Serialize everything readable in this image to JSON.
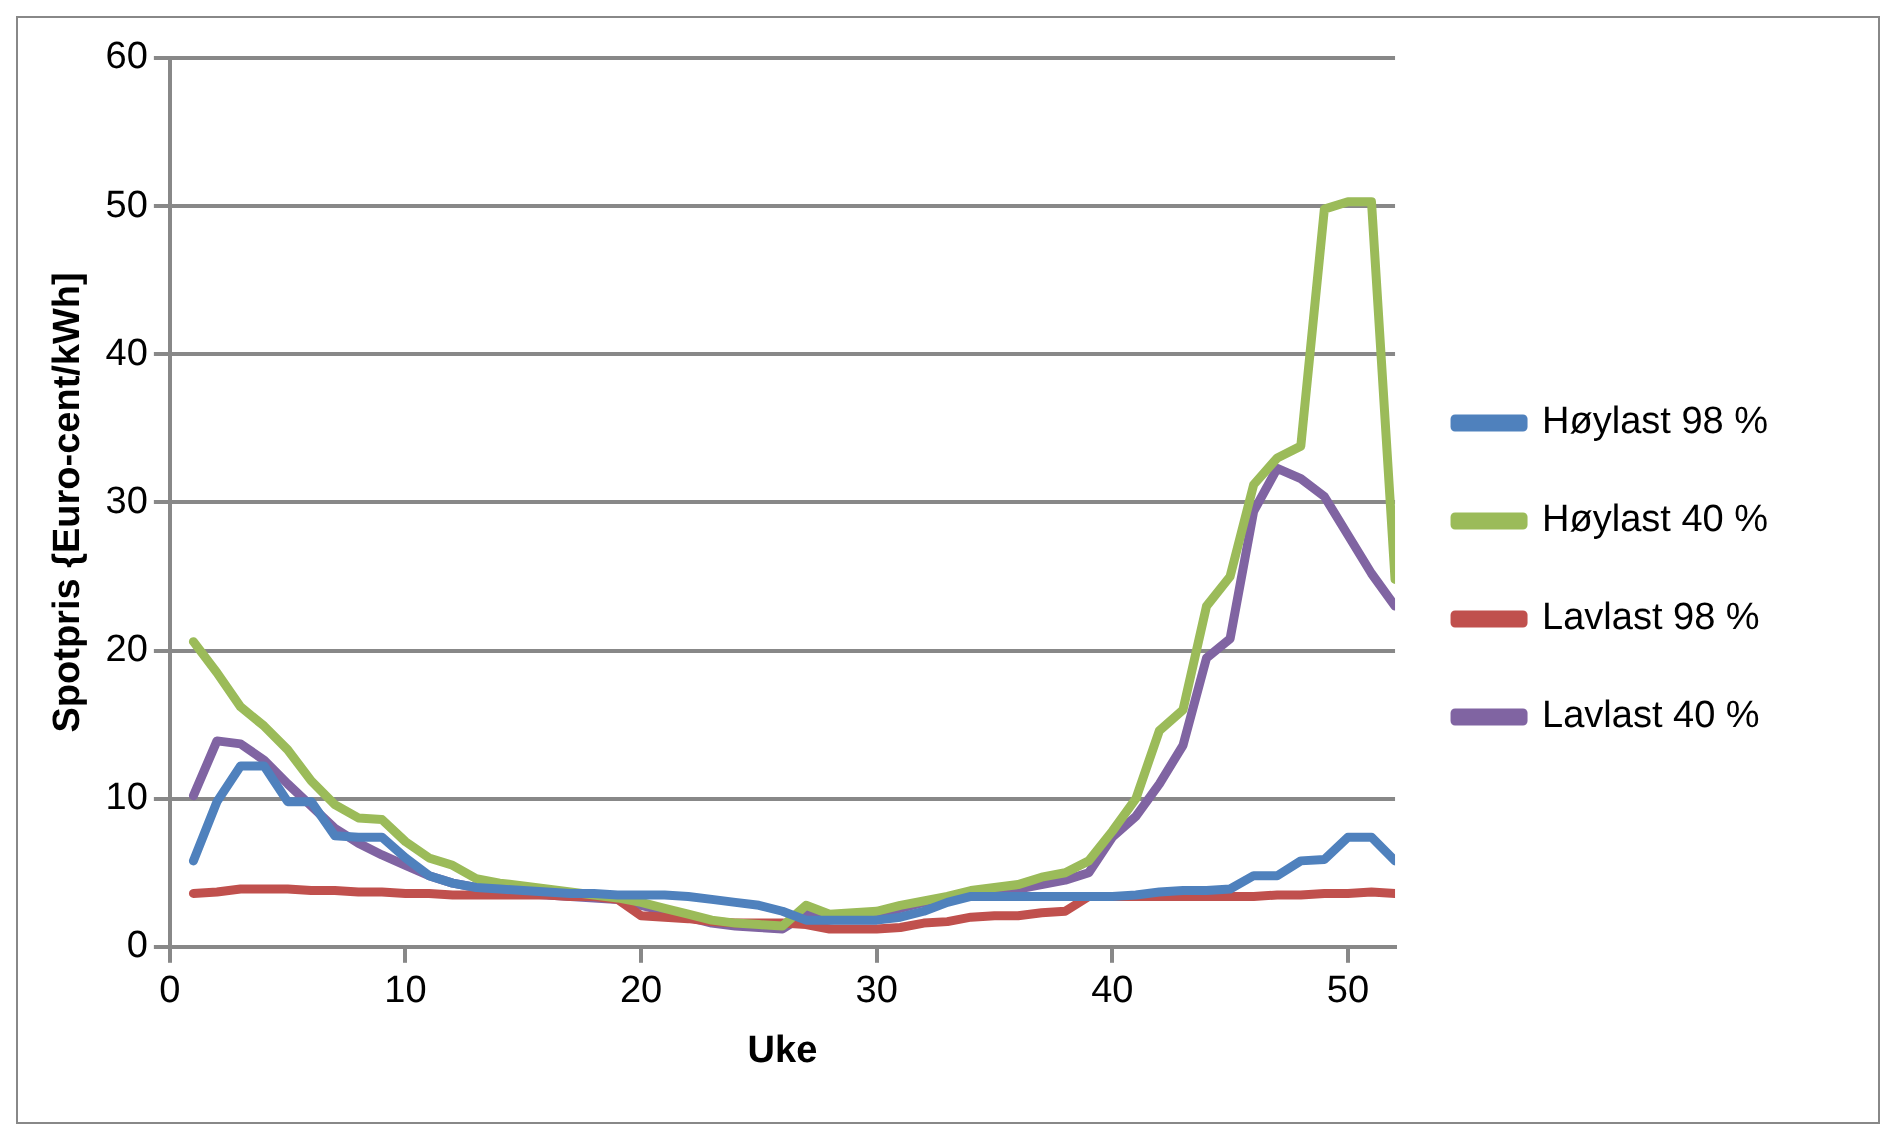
{
  "chart_data": {
    "type": "line",
    "xlabel": "Uke",
    "ylabel": "Spotpris {Euro-cent/kWh]",
    "x": [
      1,
      2,
      3,
      4,
      5,
      6,
      7,
      8,
      9,
      10,
      11,
      12,
      13,
      14,
      15,
      16,
      17,
      18,
      19,
      20,
      21,
      22,
      23,
      24,
      25,
      26,
      27,
      28,
      29,
      30,
      31,
      32,
      33,
      34,
      35,
      36,
      37,
      38,
      39,
      40,
      41,
      42,
      43,
      44,
      45,
      46,
      47,
      48,
      49,
      50,
      51,
      52
    ],
    "series": [
      {
        "name": "Høylast 98 %",
        "color": "#4f81bd",
        "values": [
          5.8,
          9.8,
          12.2,
          12.2,
          9.8,
          9.8,
          7.5,
          7.4,
          7.4,
          6,
          4.8,
          4.3,
          4,
          3.9,
          3.8,
          3.7,
          3.6,
          3.6,
          3.5,
          3.5,
          3.5,
          3.4,
          3.2,
          3,
          2.8,
          2.4,
          1.8,
          1.8,
          1.8,
          1.8,
          2,
          2.4,
          3,
          3.4,
          3.4,
          3.4,
          3.4,
          3.4,
          3.4,
          3.4,
          3.5,
          3.7,
          3.8,
          3.8,
          3.9,
          4.8,
          4.8,
          5.8,
          5.9,
          7.4,
          7.4,
          5.8
        ]
      },
      {
        "name": "Høylast 40 %",
        "color": "#9bbb59",
        "values": [
          20.6,
          18.5,
          16.2,
          14.9,
          13.3,
          11.2,
          9.6,
          8.7,
          8.6,
          7.1,
          6,
          5.5,
          4.6,
          4.3,
          4.1,
          3.9,
          3.7,
          3.5,
          3.3,
          3,
          2.6,
          2.2,
          1.8,
          1.6,
          1.5,
          1.4,
          2.8,
          2.2,
          2.3,
          2.4,
          2.8,
          3.1,
          3.4,
          3.8,
          4,
          4.2,
          4.7,
          5,
          5.8,
          7.8,
          10,
          14.6,
          16,
          23,
          25,
          31.2,
          33,
          33.8,
          49.8,
          50.3,
          50.3,
          24.8
        ]
      },
      {
        "name": "Lavlast 98 %",
        "color": "#c0504d",
        "values": [
          3.6,
          3.7,
          3.9,
          3.9,
          3.9,
          3.8,
          3.8,
          3.7,
          3.7,
          3.6,
          3.6,
          3.5,
          3.5,
          3.5,
          3.5,
          3.5,
          3.4,
          3.4,
          3.2,
          2.1,
          2,
          1.9,
          1.7,
          1.6,
          1.6,
          1.6,
          1.5,
          1.2,
          1.2,
          1.2,
          1.3,
          1.6,
          1.7,
          2,
          2.1,
          2.1,
          2.3,
          2.4,
          3.4,
          3.4,
          3.4,
          3.4,
          3.4,
          3.4,
          3.4,
          3.4,
          3.5,
          3.5,
          3.6,
          3.6,
          3.7,
          3.6
        ]
      },
      {
        "name": "Lavlast 40 %",
        "color": "#8064a2",
        "values": [
          10.2,
          13.9,
          13.7,
          12.6,
          11,
          9.5,
          8,
          7,
          6.2,
          5.5,
          4.8,
          4.3,
          4,
          3.8,
          3.6,
          3.5,
          3.4,
          3.3,
          3.2,
          2.8,
          2.4,
          2,
          1.6,
          1.4,
          1.3,
          1.2,
          2.2,
          1.8,
          2,
          2.2,
          2.6,
          3,
          3.3,
          3.6,
          3.8,
          3.9,
          4.2,
          4.5,
          5,
          7.4,
          8.8,
          11,
          13.6,
          19.5,
          20.8,
          29.4,
          32.3,
          31.6,
          30.4,
          27.8,
          25.2,
          23
        ]
      }
    ],
    "xlim": [
      0,
      52
    ],
    "xticks": [
      0,
      10,
      20,
      30,
      40,
      50
    ],
    "ylim": [
      0,
      60
    ],
    "yticks": [
      0,
      10,
      20,
      30,
      40,
      50,
      60
    ],
    "grid": "y",
    "legend": "right",
    "marker": "none",
    "line_style": "solid"
  }
}
